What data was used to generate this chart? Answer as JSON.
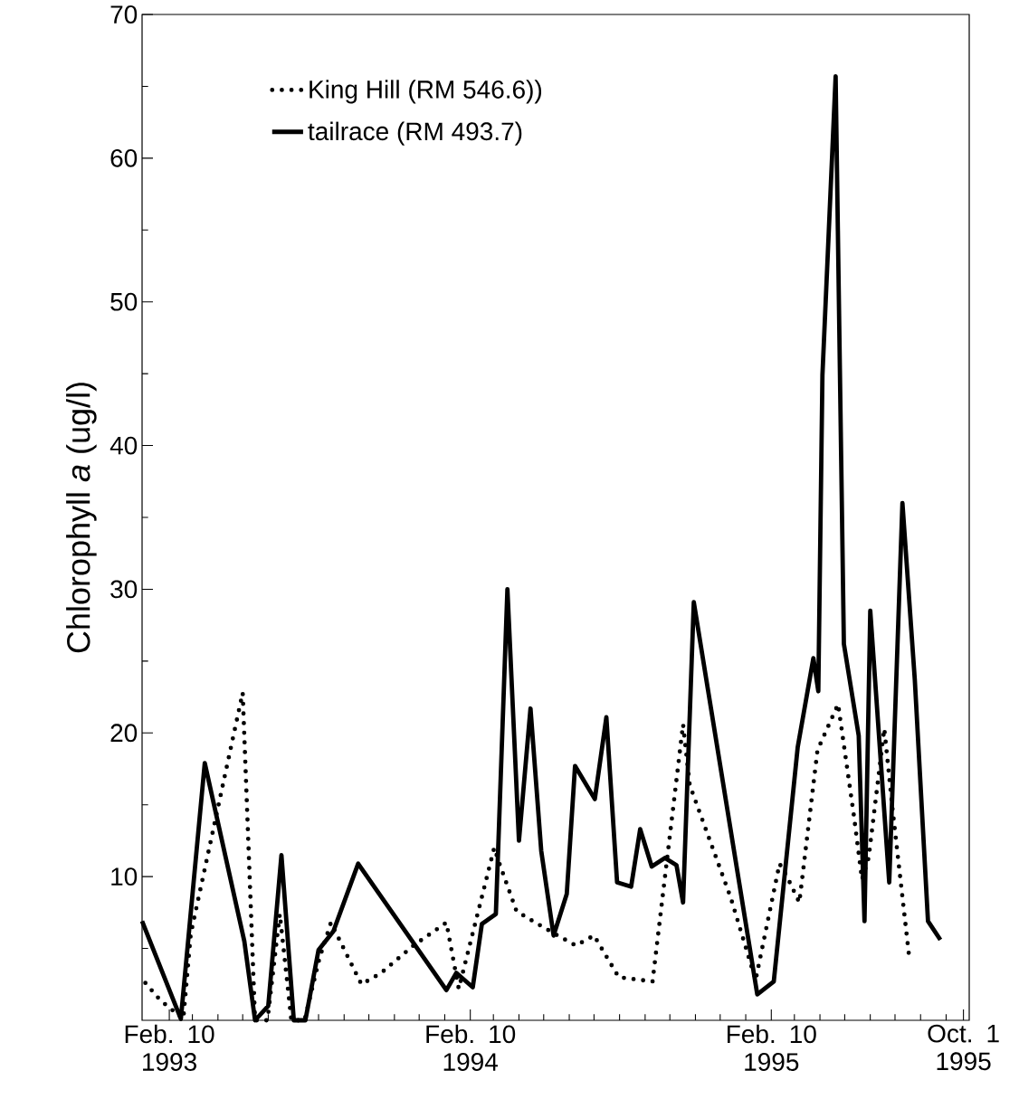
{
  "chart_data": {
    "type": "line",
    "ylabel": "Chlorophyll *a* (ug/l)",
    "xlim": [
      "1993-01-08",
      "1995-10-08"
    ],
    "xticks": [
      {
        "value": "1993-02-10",
        "label": "Feb. 10 1993"
      },
      {
        "value": "1994-02-10",
        "label": "Feb. 10 1994"
      },
      {
        "value": "1995-02-10",
        "label": "Feb. 10 1995"
      },
      {
        "value": "1995-10-01",
        "label": "Oct. 1 1995"
      },
      {
        "value": "1993-03-10",
        "label": null
      },
      {
        "value": "1993-04-10",
        "label": null
      },
      {
        "value": "1993-05-10",
        "label": null
      },
      {
        "value": "1993-06-10",
        "label": null
      },
      {
        "value": "1993-07-10",
        "label": null
      },
      {
        "value": "1993-08-10",
        "label": null
      },
      {
        "value": "1993-09-10",
        "label": null
      },
      {
        "value": "1993-10-10",
        "label": null
      },
      {
        "value": "1993-11-10",
        "label": null
      },
      {
        "value": "1993-12-10",
        "label": null
      },
      {
        "value": "1994-01-10",
        "label": null
      },
      {
        "value": "1994-03-10",
        "label": null
      },
      {
        "value": "1994-04-10",
        "label": null
      },
      {
        "value": "1994-05-10",
        "label": null
      },
      {
        "value": "1994-06-10",
        "label": null
      },
      {
        "value": "1994-07-10",
        "label": null
      },
      {
        "value": "1994-08-10",
        "label": null
      },
      {
        "value": "1994-09-10",
        "label": null
      },
      {
        "value": "1994-10-10",
        "label": null
      },
      {
        "value": "1994-11-10",
        "label": null
      },
      {
        "value": "1994-12-10",
        "label": null
      },
      {
        "value": "1995-01-10",
        "label": null
      },
      {
        "value": "1995-03-10",
        "label": null
      },
      {
        "value": "1995-04-10",
        "label": null
      },
      {
        "value": "1995-05-10",
        "label": null
      },
      {
        "value": "1995-06-10",
        "label": null
      },
      {
        "value": "1995-07-10",
        "label": null
      },
      {
        "value": "1995-08-10",
        "label": null
      },
      {
        "value": "1995-09-10",
        "label": null
      }
    ],
    "ylim": [
      0,
      70
    ],
    "yticks": [
      10,
      20,
      30,
      40,
      50,
      60,
      70,
      {
        "value": 5,
        "label": null
      },
      {
        "value": 15,
        "label": null
      },
      {
        "value": 25,
        "label": null
      },
      {
        "value": 35,
        "label": null
      },
      {
        "value": 45,
        "label": null
      },
      {
        "value": 55,
        "label": null
      },
      {
        "value": 65,
        "label": null
      }
    ],
    "legend": "top left",
    "series": [
      {
        "name": "King Hill (RM 546.6))",
        "color": "#000000",
        "line_style": "dotted",
        "x": [
          "1993-01-12",
          "1993-01-30",
          "1993-02-14",
          "1993-02-27",
          "1993-03-08",
          "1993-05-10",
          "1993-05-25",
          "1993-06-09",
          "1993-06-24",
          "1993-07-08",
          "1993-07-24",
          "1993-08-11",
          "1993-08-25",
          "1993-10-01",
          "1993-10-25",
          "1993-12-03",
          "1994-01-12",
          "1994-01-27",
          "1994-03-11",
          "1994-03-18",
          "1994-04-07",
          "1994-04-21",
          "1994-05-24",
          "1994-06-18",
          "1994-07-10",
          "1994-08-09",
          "1994-09-19",
          "1994-10-26",
          "1994-11-03",
          "1994-11-13",
          "1994-12-23",
          "1995-01-22",
          "1995-02-20",
          "1995-03-01",
          "1995-03-16",
          "1995-04-07",
          "1995-05-02",
          "1995-05-21",
          "1995-05-31",
          "1995-06-08",
          "1995-06-27",
          "1995-07-07",
          "1995-07-27"
        ],
        "values": [
          2.6,
          1.4,
          0.7,
          0.1,
          6.0,
          22.8,
          0,
          0,
          7.4,
          0,
          0,
          4.3,
          6.8,
          2.5,
          3.3,
          5.2,
          6.8,
          2.2,
          12.0,
          10.8,
          7.6,
          7.1,
          6.0,
          5.2,
          5.9,
          3.0,
          2.7,
          20.6,
          16.4,
          14.8,
          8.5,
          2.8,
          10.9,
          10.0,
          8.2,
          18.8,
          22.0,
          14.3,
          9.8,
          11.3,
          20.3,
          14.7,
          4.5
        ]
      },
      {
        "name": "tailrace (RM 493.7)",
        "color": "#000000",
        "line_style": "solid",
        "x": [
          "1993-01-08",
          "1993-02-24",
          "1993-03-25",
          "1993-05-12",
          "1993-05-25",
          "1993-06-10",
          "1993-06-26",
          "1993-07-11",
          "1993-07-25",
          "1993-08-10",
          "1993-08-28",
          "1993-09-27",
          "1994-01-12",
          "1994-01-24",
          "1994-02-13",
          "1994-02-24",
          "1994-03-13",
          "1994-03-27",
          "1994-04-10",
          "1994-04-24",
          "1994-05-07",
          "1994-05-22",
          "1994-06-07",
          "1994-06-17",
          "1994-07-11",
          "1994-07-25",
          "1994-08-07",
          "1994-08-24",
          "1994-09-04",
          "1994-09-18",
          "1994-10-04",
          "1994-10-18",
          "1994-10-26",
          "1994-11-08",
          "1995-01-24",
          "1995-02-13",
          "1995-03-14",
          "1995-04-02",
          "1995-04-08",
          "1995-04-13",
          "1995-04-29",
          "1995-05-09",
          "1995-05-27",
          "1995-06-03",
          "1995-06-10",
          "1995-07-03",
          "1995-07-19",
          "1995-08-03",
          "1995-08-19",
          "1995-09-03"
        ],
        "values": [
          6.9,
          0.1,
          17.9,
          5.5,
          0,
          1.0,
          11.5,
          0,
          0,
          4.9,
          6.2,
          10.9,
          2.1,
          3.3,
          2.3,
          6.7,
          7.4,
          30.0,
          12.5,
          21.7,
          11.8,
          5.9,
          8.8,
          17.7,
          15.4,
          21.1,
          9.6,
          9.3,
          13.3,
          10.7,
          11.3,
          10.8,
          8.2,
          29.1,
          1.8,
          2.7,
          19.0,
          25.2,
          22.9,
          44.9,
          65.7,
          26.2,
          19.8,
          6.9,
          28.5,
          9.6,
          36.0,
          23.7,
          6.9,
          5.6
        ]
      }
    ]
  }
}
